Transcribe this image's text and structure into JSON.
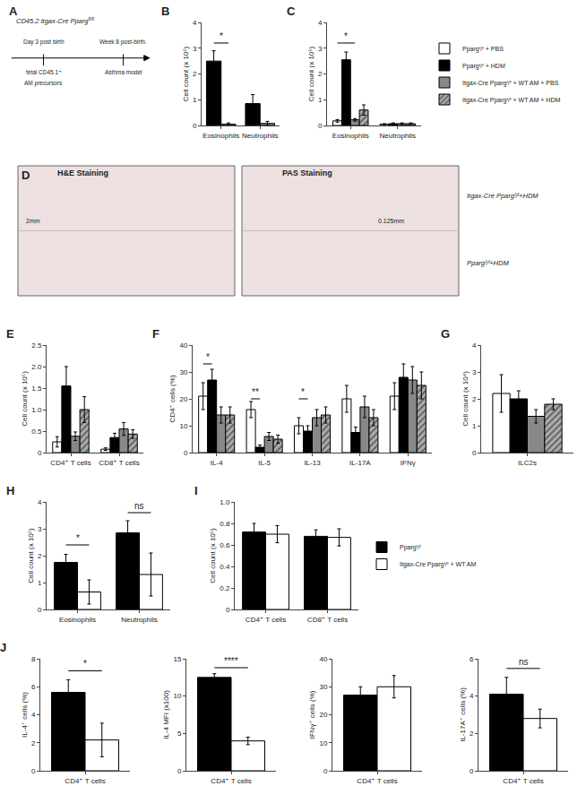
{
  "chart_data": [
    {
      "type": "schematic",
      "title": "A",
      "annotations": [
        "CD45.2 Itgax-Cre Pparg",
        "fl/fl",
        "Day 3 post birth",
        "Week 8 post-birth.",
        "fetal CD45.1⁺",
        "AM precursors",
        "Asthma model"
      ]
    },
    {
      "type": "bar",
      "title": "B",
      "categories": [
        "Eosinophils",
        "Neutrophils"
      ],
      "series": [
        {
          "color": "#000000",
          "values": [
            2.5,
            0.85
          ],
          "errors": [
            0.4,
            0.35
          ]
        },
        {
          "color": "#888888",
          "values": [
            0.05,
            0.08
          ],
          "errors": [
            0.05,
            0.08
          ]
        }
      ],
      "ylabel": "Cell count (x 10⁵)",
      "ylim": [
        0,
        4
      ],
      "yticks": [
        0,
        1,
        2,
        3,
        4
      ],
      "grid": false,
      "annotations": [
        {
          "text": "*",
          "x": "Eosinophils",
          "y": 3.2,
          "between": [
            0,
            1
          ]
        }
      ]
    },
    {
      "type": "bar",
      "title": "C",
      "categories": [
        "Eosinophils",
        "Neutrophils"
      ],
      "series": [
        {
          "name": "Ppargᶠ/ᶠ + PBS",
          "color": "#ffffff",
          "values": [
            0.18,
            0.05
          ],
          "errors": [
            0.05,
            0.02
          ]
        },
        {
          "name": "Ppargᶠ/ᶠ + HDM",
          "color": "#000000",
          "values": [
            2.55,
            0.07
          ],
          "errors": [
            0.3,
            0.03
          ]
        },
        {
          "name": "Itgax-Cre Ppargᶠ/ᶠ + WT AM + PBS",
          "color": "#888888",
          "values": [
            0.22,
            0.07
          ],
          "errors": [
            0.05,
            0.03
          ]
        },
        {
          "name": "Itgax-Cre Ppargᶠ/ᶠ + WT AM + HDM",
          "color": "#aaaaaa",
          "marker": "hatch",
          "values": [
            0.6,
            0.07
          ],
          "errors": [
            0.2,
            0.03
          ]
        }
      ],
      "ylabel": "Cell count (x 10⁵)",
      "ylim": [
        0,
        4
      ],
      "yticks": [
        0,
        1,
        2,
        3,
        4
      ],
      "grid": false,
      "legend": "right",
      "annotations": [
        {
          "text": "*",
          "x": "Eosinophils",
          "y": 3.2,
          "between": [
            0,
            2
          ]
        }
      ]
    },
    {
      "type": "image",
      "title": "D",
      "annotations": [
        "H&E Staining",
        "PAS Staining",
        "2mm",
        "0.125mm",
        "Itgax-Cre Ppargᶠ/ᶠ+HDM",
        "Ppargᶠ/ᶠ+HDM"
      ]
    },
    {
      "type": "bar",
      "title": "E",
      "categories": [
        "CD4⁺ T cells",
        "CD8⁺ T cells"
      ],
      "series": [
        {
          "color": "#ffffff",
          "values": [
            0.25,
            0.08
          ],
          "errors": [
            0.12,
            0.03
          ]
        },
        {
          "color": "#000000",
          "values": [
            1.55,
            0.35
          ],
          "errors": [
            0.45,
            0.1
          ]
        },
        {
          "color": "#888888",
          "values": [
            0.38,
            0.55
          ],
          "errors": [
            0.1,
            0.15
          ]
        },
        {
          "color": "#aaaaaa",
          "marker": "hatch",
          "values": [
            1.0,
            0.43
          ],
          "errors": [
            0.3,
            0.1
          ]
        }
      ],
      "ylabel": "Cell count (x 10⁵)",
      "ylim": [
        0,
        2.5
      ],
      "yticks": [
        0,
        0.5,
        {
          "value": 1,
          "label": "1.0"
        },
        1.5,
        {
          "value": 2,
          "label": "2.0"
        },
        2.5
      ],
      "grid": false
    },
    {
      "type": "bar",
      "title": "F",
      "categories": [
        "IL-4",
        "IL-5",
        "IL-13",
        "IL-17A",
        "IFNγ"
      ],
      "series": [
        {
          "color": "#ffffff",
          "values": [
            21.0,
            16.0,
            10.0,
            20.0,
            21.0
          ],
          "errors": [
            5.0,
            3.0,
            3.0,
            5.0,
            5.0
          ]
        },
        {
          "color": "#000000",
          "values": [
            27.0,
            2.0,
            8.0,
            7.5,
            28.0
          ],
          "errors": [
            4.0,
            0.8,
            2.0,
            2.0,
            5.0
          ]
        },
        {
          "color": "#888888",
          "values": [
            14.0,
            6.0,
            13.0,
            17.0,
            27.0
          ],
          "errors": [
            3.0,
            1.5,
            3.0,
            4.0,
            5.0
          ]
        },
        {
          "color": "#aaaaaa",
          "marker": "hatch",
          "values": [
            14.0,
            5.0,
            14.0,
            13.0,
            25.0
          ],
          "errors": [
            3.0,
            1.5,
            3.0,
            3.0,
            5.0
          ]
        }
      ],
      "ylabel": "CD4⁺ cells (%)",
      "ylim": [
        0,
        40
      ],
      "yticks": [
        0,
        10,
        20,
        30,
        40
      ],
      "grid": false,
      "annotations": [
        {
          "text": "*",
          "x": "IL-4",
          "y": 33,
          "between": [
            0,
            1
          ]
        },
        {
          "text": "**",
          "x": "IL-5",
          "y": 20,
          "between": [
            0,
            1
          ]
        },
        {
          "text": "*",
          "x": "IL-13",
          "y": 20,
          "between": [
            0,
            1
          ]
        }
      ]
    },
    {
      "type": "bar",
      "title": "G",
      "categories": [
        "ILC2s"
      ],
      "series": [
        {
          "color": "#ffffff",
          "values": [
            2.2
          ],
          "errors": [
            0.7
          ]
        },
        {
          "color": "#000000",
          "values": [
            2.0
          ],
          "errors": [
            0.3
          ]
        },
        {
          "color": "#888888",
          "values": [
            1.35
          ],
          "errors": [
            0.25
          ]
        },
        {
          "color": "#aaaaaa",
          "marker": "hatch",
          "values": [
            1.8
          ],
          "errors": [
            0.2
          ]
        }
      ],
      "ylabel": "Cell count (x 10⁴)",
      "ylim": [
        0,
        4
      ],
      "yticks": [
        0,
        1,
        2,
        3,
        4
      ],
      "grid": false
    },
    {
      "type": "bar",
      "title": "H",
      "categories": [
        "Eosinophils",
        "Neutrophils"
      ],
      "series": [
        {
          "color": "#000000",
          "values": [
            1.75,
            2.85
          ],
          "errors": [
            0.3,
            0.45
          ]
        },
        {
          "color": "#ffffff",
          "values": [
            0.65,
            1.3
          ],
          "errors": [
            0.45,
            0.8
          ]
        }
      ],
      "ylabel": "Cell count (x 10⁵)",
      "ylim": [
        0,
        4
      ],
      "yticks": [
        0,
        1,
        2,
        3,
        4
      ],
      "grid": false,
      "annotations": [
        {
          "text": "*",
          "x": "Eosinophils",
          "y": 2.4,
          "between": [
            0,
            1
          ]
        },
        {
          "text": "ns",
          "x": "Neutrophils",
          "y": 3.6,
          "between": [
            0,
            1
          ]
        }
      ]
    },
    {
      "type": "bar",
      "title": "I",
      "categories": [
        "CD4⁺ T cells",
        "CD8⁺ T cells"
      ],
      "series": [
        {
          "name": "Ppargᶠ/ᶠ",
          "color": "#000000",
          "values": [
            0.72,
            0.68
          ],
          "errors": [
            0.08,
            0.06
          ]
        },
        {
          "name": "Itgax-Cre Ppargᶠ/ᶠ + WT AM",
          "color": "#ffffff",
          "values": [
            0.7,
            0.67
          ],
          "errors": [
            0.08,
            0.08
          ]
        }
      ],
      "ylabel": "Cell count (x 10⁵)",
      "ylim": [
        0,
        1.0
      ],
      "yticks": [
        0,
        0.2,
        0.4,
        0.6,
        0.8,
        {
          "value": 1,
          "label": "1.0"
        }
      ],
      "grid": false,
      "legend": "right"
    },
    {
      "type": "bar",
      "title": "J",
      "categories": [
        "CD4⁺ T cells"
      ],
      "series": [
        {
          "color": "#000000",
          "values": [
            5.6
          ],
          "errors": [
            0.9
          ]
        },
        {
          "color": "#ffffff",
          "values": [
            2.2
          ],
          "errors": [
            1.2
          ]
        }
      ],
      "ylabel": "IL-4⁺ cells (%)",
      "ylim": [
        0,
        8
      ],
      "yticks": [
        0,
        2,
        4,
        6,
        8
      ],
      "grid": false,
      "annotations": [
        {
          "text": "*",
          "x": "CD4⁺ T cells",
          "y": 7.14,
          "between": [
            0,
            1
          ]
        }
      ]
    },
    {
      "type": "bar",
      "categories": [
        "CD4⁺ T cells"
      ],
      "series": [
        {
          "color": "#000000",
          "values": [
            12.5
          ],
          "errors": [
            0.5
          ]
        },
        {
          "color": "#ffffff",
          "values": [
            4.0
          ],
          "errors": [
            0.5
          ]
        }
      ],
      "ylabel": "IL-4 MFI (x100)",
      "ylim": [
        0,
        15
      ],
      "yticks": [
        0,
        5,
        10,
        15
      ],
      "grid": false,
      "annotations": [
        {
          "text": "****",
          "x": "CD4⁺ T cells",
          "y": 13.8,
          "between": [
            0,
            1
          ]
        }
      ]
    },
    {
      "type": "bar",
      "categories": [
        "CD4⁺ T cells"
      ],
      "series": [
        {
          "color": "#000000",
          "values": [
            27.0
          ],
          "errors": [
            3.0
          ]
        },
        {
          "color": "#ffffff",
          "values": [
            30.0
          ],
          "errors": [
            4.0
          ]
        }
      ],
      "ylabel": "IFNγ⁺ cells (%)",
      "ylim": [
        0,
        40
      ],
      "yticks": [
        0,
        10,
        20,
        30,
        40
      ],
      "grid": false
    },
    {
      "type": "bar",
      "categories": [
        "CD4⁺ T cells"
      ],
      "series": [
        {
          "color": "#000000",
          "values": [
            4.1
          ],
          "errors": [
            0.9
          ]
        },
        {
          "color": "#ffffff",
          "values": [
            2.8
          ],
          "errors": [
            0.5
          ]
        }
      ],
      "ylabel": "IL-17A⁺ cells (%)",
      "ylim": [
        0,
        6
      ],
      "yticks": [
        0,
        2,
        4,
        6
      ],
      "grid": false,
      "annotations": [
        {
          "text": "ns",
          "x": "CD4⁺ T cells",
          "y": 5.48,
          "between": [
            0,
            1
          ]
        }
      ]
    }
  ]
}
